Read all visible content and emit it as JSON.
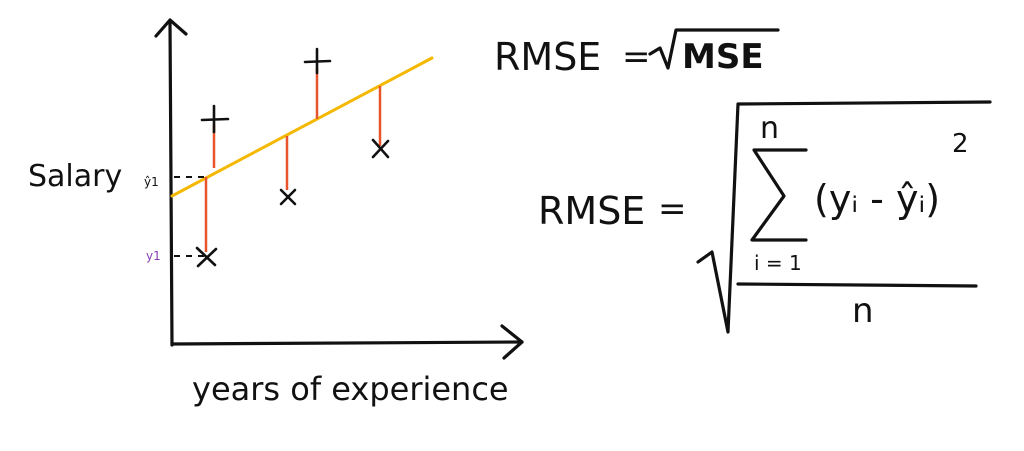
{
  "diagram": {
    "y_axis_label": "Salary",
    "x_axis_label": "years of experience",
    "yhat_tick_label": "ŷ1",
    "y_tick_label": "y1",
    "formula1": {
      "lhs": "RMSE",
      "equals": "=",
      "rhs": "MSE"
    },
    "formula2": {
      "lhs": "RMSE",
      "equals": "=",
      "sum_upper": "n",
      "sum_lower": "i = 1",
      "numerator": "(yᵢ - ŷᵢ)",
      "exponent": "2",
      "denominator": "n"
    },
    "colors": {
      "ink": "#111111",
      "regression_line": "#f5b800",
      "residual": "#e8552a",
      "tick_label": "#8a3fb8"
    },
    "markers": {
      "plus": "plus-marker",
      "cross": "cross-marker"
    }
  }
}
